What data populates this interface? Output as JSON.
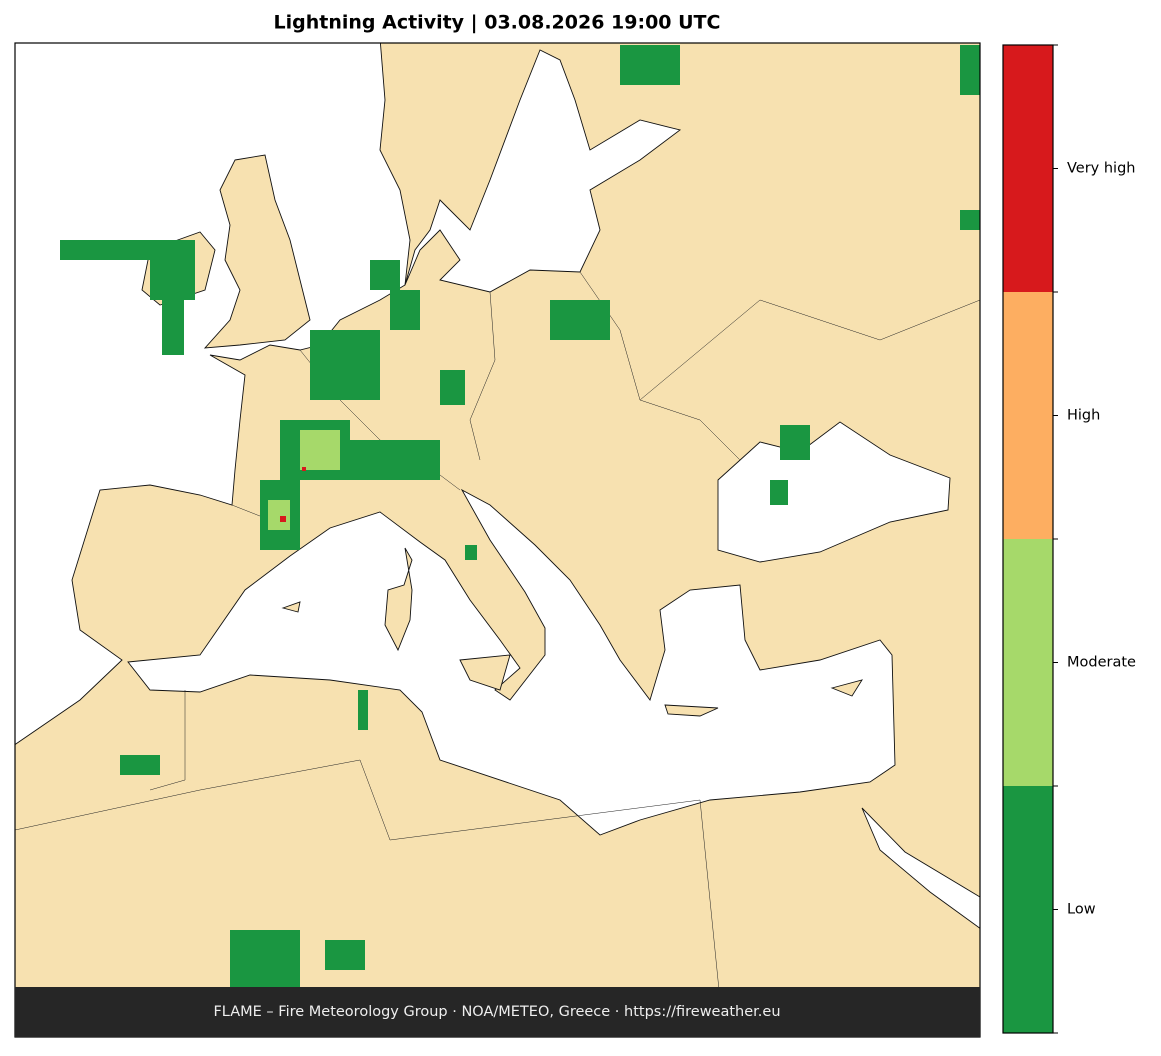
{
  "title": "Lightning Activity  |  03.08.2026 19:00 UTC",
  "footer": "FLAME – Fire Meteorology Group · NOA/METEO, Greece · https://fireweather.eu",
  "legend": {
    "items": [
      {
        "label": "Low",
        "color": "#1a9641"
      },
      {
        "label": "Moderate",
        "color": "#a6d96a"
      },
      {
        "label": "High",
        "color": "#fdae61"
      },
      {
        "label": "Very high",
        "color": "#d7191c"
      }
    ]
  }
}
